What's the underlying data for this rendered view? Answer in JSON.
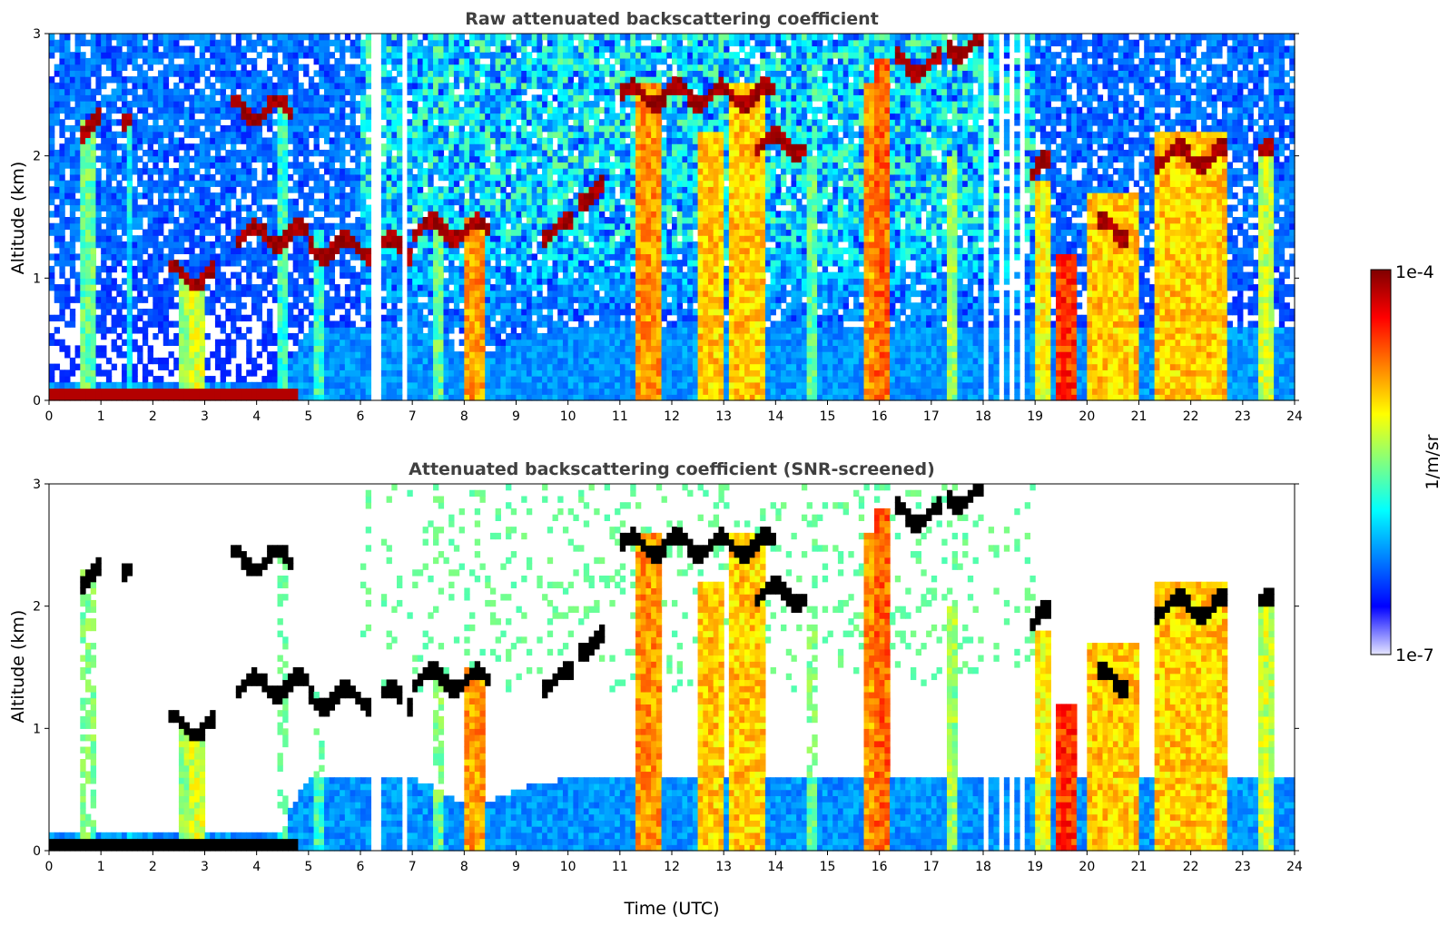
{
  "chart_data": [
    {
      "type": "heatmap",
      "title": "Raw attenuated backscattering coefficient",
      "xlabel": "",
      "ylabel": "Altitude (km)",
      "x_ticks": [
        "0",
        "1",
        "2",
        "3",
        "4",
        "5",
        "6",
        "7",
        "8",
        "9",
        "10",
        "11",
        "12",
        "13",
        "14",
        "15",
        "16",
        "17",
        "18",
        "19",
        "20",
        "21",
        "22",
        "23",
        "24"
      ],
      "y_ticks": [
        "0",
        "1",
        "2",
        "3"
      ],
      "xlim": [
        0,
        24
      ],
      "ylim": [
        0,
        3
      ],
      "screened": false
    },
    {
      "type": "heatmap",
      "title": "Attenuated backscattering coefficient (SNR-screened)",
      "xlabel": "Time (UTC)",
      "ylabel": "Altitude (km)",
      "x_ticks": [
        "0",
        "1",
        "2",
        "3",
        "4",
        "5",
        "6",
        "7",
        "8",
        "9",
        "10",
        "11",
        "12",
        "13",
        "14",
        "15",
        "16",
        "17",
        "18",
        "19",
        "20",
        "21",
        "22",
        "23",
        "24"
      ],
      "y_ticks": [
        "0",
        "1",
        "2",
        "3"
      ],
      "xlim": [
        0,
        24
      ],
      "ylim": [
        0,
        3
      ],
      "screened": true
    }
  ],
  "colorbar": {
    "label": "1/m/sr",
    "max_label": "1e-4",
    "min_label": "1e-7",
    "scale": "log",
    "colors": [
      "#e6e6ff",
      "#0000ff",
      "#0080ff",
      "#00ffff",
      "#80ff80",
      "#ffff00",
      "#ff8000",
      "#ff0000",
      "#800000"
    ]
  },
  "features": {
    "surface_layer": {
      "t": [
        0,
        4.8
      ],
      "z": 0.07
    },
    "boundary_layer_top": [
      [
        4.6,
        0.3
      ],
      [
        5,
        0.6
      ],
      [
        6,
        0.6
      ],
      [
        7,
        0.6
      ],
      [
        8.2,
        0.35
      ],
      [
        9,
        0.5
      ],
      [
        10,
        0.6
      ],
      [
        11,
        0.6
      ],
      [
        15,
        0.6
      ],
      [
        18,
        0.6
      ],
      [
        19,
        0.6
      ]
    ],
    "cloud_layers": [
      {
        "t": [
          0.55,
          1.0
        ],
        "z": 2.25
      },
      {
        "t": [
          1.4,
          1.65
        ],
        "z": 2.35
      },
      {
        "t": [
          2.3,
          3.2
        ],
        "z": 1.02
      },
      {
        "t": [
          3.5,
          4.7
        ],
        "z": 2.38
      },
      {
        "t": [
          3.6,
          5.0
        ],
        "z": 1.35
      },
      {
        "t": [
          5.0,
          7.0
        ],
        "z": 1.25
      },
      {
        "t": [
          7.0,
          8.5
        ],
        "z": 1.4
      },
      {
        "t": [
          9.5,
          10.1
        ],
        "z": 1.4
      },
      {
        "t": [
          10.2,
          10.7
        ],
        "z": 1.7
      },
      {
        "t": [
          11.0,
          12.3
        ],
        "z": 2.5
      },
      {
        "t": [
          12.3,
          14.0
        ],
        "z": 2.5
      },
      {
        "t": [
          13.6,
          14.6
        ],
        "z": 2.1
      },
      {
        "t": [
          16.3,
          17.2
        ],
        "z": 2.75
      },
      {
        "t": [
          17.3,
          18.1
        ],
        "z": 2.9
      },
      {
        "t": [
          18.9,
          19.3
        ],
        "z": 1.9
      },
      {
        "t": [
          20.2,
          20.8
        ],
        "z": 1.4
      },
      {
        "t": [
          21.3,
          22.7
        ],
        "z": 2.0
      },
      {
        "t": [
          23.3,
          23.6
        ],
        "z": 2.0
      }
    ],
    "precipitation_columns": [
      {
        "t": [
          0.65,
          0.9
        ],
        "top": 2.3,
        "intensity": 0.5
      },
      {
        "t": [
          1.5,
          1.6
        ],
        "top": 2.3,
        "intensity": 0.4
      },
      {
        "t": [
          2.5,
          2.65
        ],
        "top": 1.0,
        "intensity": 0.55
      },
      {
        "t": [
          2.75,
          3.0
        ],
        "top": 1.0,
        "intensity": 0.6
      },
      {
        "t": [
          4.4,
          4.6
        ],
        "top": 2.4,
        "intensity": 0.45
      },
      {
        "t": [
          5.1,
          5.3
        ],
        "top": 1.4,
        "intensity": 0.45
      },
      {
        "t": [
          7.4,
          7.6
        ],
        "top": 1.5,
        "intensity": 0.5
      },
      {
        "t": [
          8.0,
          8.35
        ],
        "top": 1.5,
        "intensity": 0.75
      },
      {
        "t": [
          11.3,
          11.8
        ],
        "top": 2.6,
        "intensity": 0.75
      },
      {
        "t": [
          12.5,
          13.0
        ],
        "top": 2.2,
        "intensity": 0.7
      },
      {
        "t": [
          13.1,
          13.8
        ],
        "top": 2.6,
        "intensity": 0.7
      },
      {
        "t": [
          14.6,
          14.8
        ],
        "top": 2.0,
        "intensity": 0.5
      },
      {
        "t": [
          15.7,
          15.9
        ],
        "top": 2.6,
        "intensity": 0.75
      },
      {
        "t": [
          15.95,
          16.2
        ],
        "top": 2.8,
        "intensity": 0.8
      },
      {
        "t": [
          17.3,
          17.5
        ],
        "top": 2.0,
        "intensity": 0.55
      },
      {
        "t": [
          19.0,
          19.3
        ],
        "top": 1.8,
        "intensity": 0.65
      },
      {
        "t": [
          19.4,
          19.8
        ],
        "top": 1.2,
        "intensity": 0.85
      },
      {
        "t": [
          20.0,
          21.0
        ],
        "top": 1.7,
        "intensity": 0.7
      },
      {
        "t": [
          21.3,
          22.7
        ],
        "top": 2.2,
        "intensity": 0.7
      },
      {
        "t": [
          23.3,
          23.6
        ],
        "top": 2.0,
        "intensity": 0.6
      }
    ],
    "gaps": [
      6.3,
      6.85,
      18.05,
      18.3,
      18.55,
      18.75
    ]
  }
}
